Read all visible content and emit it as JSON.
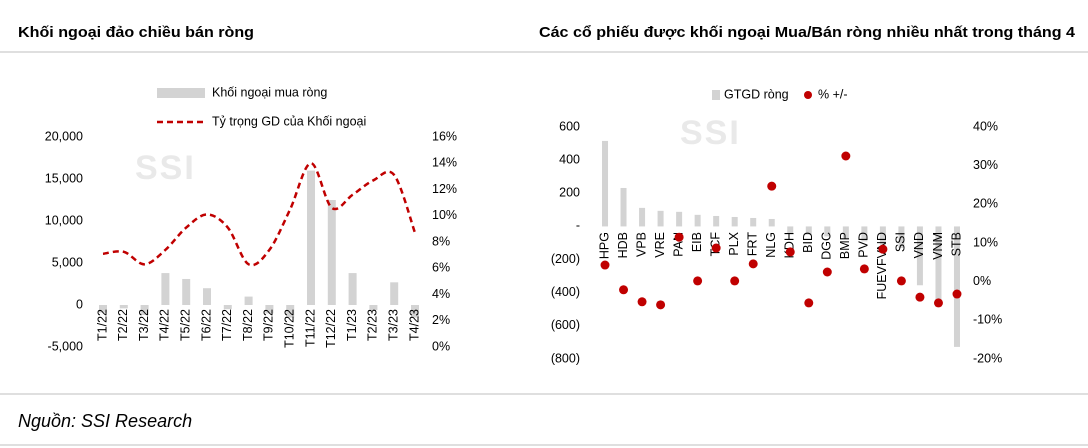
{
  "chart_data": [
    {
      "type": "combo",
      "title": "Khối ngoại đảo chiều bán ròng",
      "watermark": "SSI",
      "categories": [
        "T1/22",
        "T2/22",
        "T3/22",
        "T4/22",
        "T5/22",
        "T6/22",
        "T7/22",
        "T8/22",
        "T9/22",
        "T10/22",
        "T11/22",
        "T12/22",
        "T1/23",
        "T2/23",
        "T3/23",
        "T4/23"
      ],
      "series": [
        {
          "name": "Khối ngoại mua ròng",
          "type": "bar",
          "color": "#d3d3d3",
          "values": [
            -900,
            -400,
            -1200,
            3800,
            3100,
            2000,
            -500,
            1000,
            -1000,
            -1500,
            16000,
            12500,
            3800,
            -600,
            2700,
            -1500
          ]
        },
        {
          "name": "Tỷ trọng GD của Khối ngoại",
          "type": "line",
          "axis": "y2",
          "color": "#c00000",
          "line_style": "dashed",
          "values": [
            7.1,
            7.25,
            6.3,
            7.4,
            9.1,
            10.1,
            9.1,
            6.3,
            7.4,
            10.5,
            14.0,
            10.6,
            11.6,
            12.7,
            13.1,
            8.7
          ]
        }
      ],
      "ylim": [
        -5000,
        20000
      ],
      "yticks": [
        {
          "value": -5000,
          "label": "-5,000"
        },
        0,
        {
          "value": 5000,
          "label": "5,000"
        },
        {
          "value": 10000,
          "label": "10,000"
        },
        {
          "value": 15000,
          "label": "15,000"
        },
        {
          "value": 20000,
          "label": "20,000"
        }
      ],
      "y2lim": [
        0,
        16
      ],
      "y2ticks": [
        {
          "value": 0,
          "label": "0%"
        },
        {
          "value": 2,
          "label": "2%"
        },
        {
          "value": 4,
          "label": "4%"
        },
        {
          "value": 6,
          "label": "6%"
        },
        {
          "value": 8,
          "label": "8%"
        },
        {
          "value": 10,
          "label": "10%"
        },
        {
          "value": 12,
          "label": "12%"
        },
        {
          "value": 14,
          "label": "14%"
        },
        {
          "value": 16,
          "label": "16%"
        }
      ],
      "grid": false,
      "legend": "top"
    },
    {
      "type": "combo",
      "title": "Các cổ phiếu được khối ngoại Mua/Bán ròng nhiều nhất trong tháng 4",
      "watermark": "SSI",
      "categories": [
        "HPG",
        "HDB",
        "VPB",
        "VRE",
        "PAN",
        "EIB",
        "TCF",
        "PLX",
        "FRT",
        "NLG",
        "KDH",
        "BID",
        "DGC",
        "BMP",
        "PVD",
        "FUEVFVND",
        "SSI",
        "VND",
        "VNM",
        "STB"
      ],
      "series": [
        {
          "name": "GTGD ròng",
          "type": "bar",
          "color": "#d3d3d3",
          "values": [
            516,
            232,
            112,
            94,
            88,
            70,
            63,
            57,
            51,
            45,
            -40,
            -50,
            -60,
            -70,
            -90,
            -110,
            -130,
            -355,
            -443,
            -727
          ]
        },
        {
          "name": "% +/-",
          "type": "scatter",
          "axis": "y2",
          "color": "#c00000",
          "values": [
            4.3,
            -2.1,
            -5.2,
            -6.0,
            11.5,
            0.2,
            8.7,
            0.2,
            4.6,
            24.7,
            7.7,
            -5.5,
            2.5,
            32.5,
            3.3,
            8.4,
            0.2,
            -4.0,
            -5.5,
            -3.2
          ]
        }
      ],
      "ylim": [
        -800,
        600
      ],
      "yticks": [
        {
          "value": -800,
          "label": "(800)"
        },
        {
          "value": -600,
          "label": "(600)"
        },
        {
          "value": -400,
          "label": "(400)"
        },
        {
          "value": -200,
          "label": "(200)"
        },
        {
          "value": 0,
          "label": "-"
        },
        200,
        400,
        600
      ],
      "y2lim": [
        -20,
        40
      ],
      "y2ticks": [
        {
          "value": -20,
          "label": "-20%"
        },
        {
          "value": -10,
          "label": "-10%"
        },
        {
          "value": 0,
          "label": "0%"
        },
        {
          "value": 10,
          "label": "10%"
        },
        {
          "value": 20,
          "label": "20%"
        },
        {
          "value": 30,
          "label": "30%"
        },
        {
          "value": 40,
          "label": "40%"
        }
      ],
      "grid": false,
      "legend": "top"
    }
  ],
  "source": "Nguồn: SSI Research"
}
